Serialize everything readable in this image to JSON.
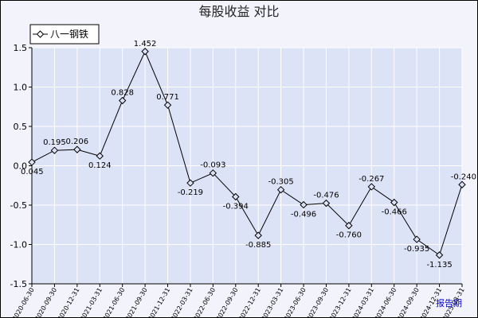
{
  "chart_data": {
    "type": "line",
    "title": "每股收益  对比",
    "xlabel": "",
    "ylabel": "",
    "ylim": [
      -1.5,
      1.5
    ],
    "yticks": [
      "1.5",
      "1.0",
      "0.5",
      "0.0",
      "-0.5",
      "-1.0",
      "-1.5"
    ],
    "categories": [
      "2020-06-30",
      "2020-09-30",
      "2020-12-31",
      "2021-03-31",
      "2021-06-30",
      "2021-09-30",
      "2021-12-31",
      "2022-03-31",
      "2022-06-30",
      "2022-09-30",
      "2022-12-31",
      "2023-03-31",
      "2023-06-30",
      "2023-09-30",
      "2023-12-31",
      "2024-03-31",
      "2024-06-30",
      "2024-09-30",
      "2024-12-31",
      "2025-03-31"
    ],
    "series": [
      {
        "name": "八一钢铁",
        "values": [
          0.045,
          0.195,
          0.206,
          0.124,
          0.828,
          1.452,
          0.771,
          -0.219,
          -0.093,
          -0.394,
          -0.885,
          -0.305,
          -0.496,
          -0.476,
          -0.76,
          -0.267,
          -0.466,
          -0.935,
          -1.135,
          -0.24
        ],
        "labels": [
          "0.045",
          "0.195",
          "0.206",
          "0.124",
          "0.828",
          "1.452",
          "0.771",
          "-0.219",
          "-0.093",
          "-0.394",
          "-0.885",
          "-0.305",
          "-0.496",
          "-0.476",
          "-0.760",
          "-0.267",
          "-0.466",
          "-0.935",
          "-1.135",
          "-0.240"
        ]
      }
    ],
    "legend": "top-left",
    "grid": true,
    "period_label": "报告期",
    "colors": {
      "plot_bg": "#dde3f6",
      "grid": "#ffffff",
      "line": "#000000"
    }
  }
}
